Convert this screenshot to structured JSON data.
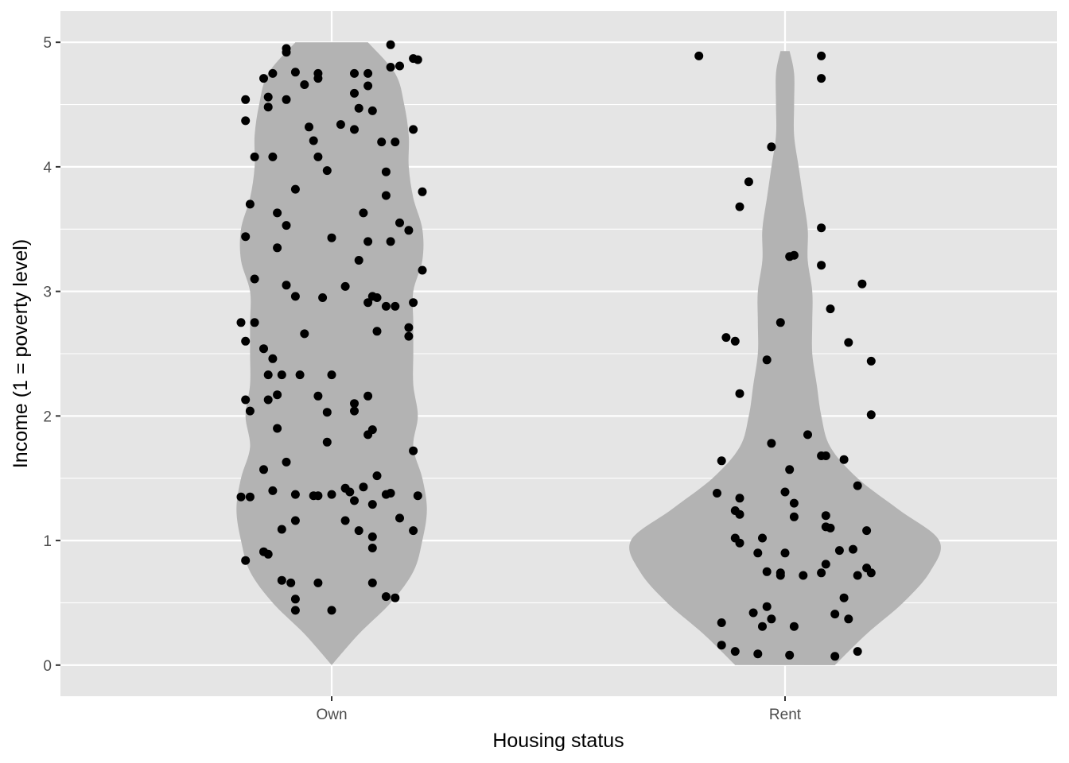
{
  "chart_data": {
    "type": "violin",
    "xlabel": "Housing status",
    "ylabel": "Income (1 = poverty level)",
    "ylim": [
      -0.25,
      5.25
    ],
    "yticks": [
      0,
      1,
      2,
      3,
      4,
      5
    ],
    "categories": [
      "Own",
      "Rent"
    ],
    "grid": true,
    "legend": "none",
    "colors": {
      "panel": "#e5e5e5",
      "grid": "#ffffff",
      "violin": "#b3b3b3",
      "point": "#000000",
      "tick": "#4d4d4d"
    },
    "violins": [
      {
        "category": "Own",
        "density_half_width": [
          [
            0.0,
            0.0
          ],
          [
            0.25,
            0.06
          ],
          [
            0.5,
            0.13
          ],
          [
            0.75,
            0.18
          ],
          [
            1.0,
            0.2
          ],
          [
            1.25,
            0.21
          ],
          [
            1.5,
            0.2
          ],
          [
            1.75,
            0.18
          ],
          [
            2.0,
            0.19
          ],
          [
            2.25,
            0.18
          ],
          [
            2.5,
            0.18
          ],
          [
            2.75,
            0.18
          ],
          [
            3.0,
            0.18
          ],
          [
            3.25,
            0.2
          ],
          [
            3.5,
            0.2
          ],
          [
            3.75,
            0.18
          ],
          [
            4.0,
            0.17
          ],
          [
            4.25,
            0.17
          ],
          [
            4.5,
            0.16
          ],
          [
            4.75,
            0.14
          ],
          [
            5.0,
            0.08
          ]
        ],
        "points": [
          [
            -0.19,
            4.54
          ],
          [
            -0.19,
            4.37
          ],
          [
            -0.17,
            4.08
          ],
          [
            -0.18,
            3.7
          ],
          [
            -0.19,
            3.44
          ],
          [
            -0.17,
            3.1
          ],
          [
            -0.2,
            2.75
          ],
          [
            -0.19,
            2.6
          ],
          [
            -0.17,
            2.75
          ],
          [
            -0.15,
            2.54
          ],
          [
            -0.13,
            2.46
          ],
          [
            -0.19,
            2.13
          ],
          [
            -0.18,
            2.04
          ],
          [
            -0.14,
            2.33
          ],
          [
            -0.14,
            2.13
          ],
          [
            -0.12,
            1.9
          ],
          [
            -0.12,
            2.17
          ],
          [
            -0.2,
            1.35
          ],
          [
            -0.18,
            1.35
          ],
          [
            -0.15,
            1.57
          ],
          [
            -0.13,
            1.4
          ],
          [
            -0.11,
            1.09
          ],
          [
            -0.15,
            0.91
          ],
          [
            -0.14,
            0.89
          ],
          [
            -0.19,
            0.84
          ],
          [
            -0.11,
            0.68
          ],
          [
            -0.09,
            0.66
          ],
          [
            -0.08,
            0.53
          ],
          [
            -0.08,
            0.44
          ],
          [
            -0.03,
            0.66
          ],
          [
            0.0,
            0.44
          ],
          [
            -0.15,
            4.71
          ],
          [
            -0.13,
            4.75
          ],
          [
            -0.1,
            4.92
          ],
          [
            -0.1,
            4.95
          ],
          [
            -0.08,
            4.76
          ],
          [
            -0.06,
            4.66
          ],
          [
            -0.03,
            4.71
          ],
          [
            -0.03,
            4.75
          ],
          [
            -0.14,
            4.56
          ],
          [
            -0.14,
            4.48
          ],
          [
            -0.1,
            4.54
          ],
          [
            -0.05,
            4.32
          ],
          [
            -0.04,
            4.21
          ],
          [
            -0.03,
            4.08
          ],
          [
            -0.01,
            3.97
          ],
          [
            -0.13,
            4.08
          ],
          [
            -0.08,
            3.82
          ],
          [
            -0.12,
            3.63
          ],
          [
            -0.1,
            3.53
          ],
          [
            -0.12,
            3.35
          ],
          [
            0.0,
            3.43
          ],
          [
            -0.1,
            3.05
          ],
          [
            -0.08,
            2.96
          ],
          [
            -0.06,
            2.66
          ],
          [
            -0.11,
            2.33
          ],
          [
            -0.07,
            2.33
          ],
          [
            -0.03,
            2.16
          ],
          [
            -0.01,
            2.03
          ],
          [
            0.0,
            2.33
          ],
          [
            -0.01,
            1.79
          ],
          [
            -0.1,
            1.63
          ],
          [
            -0.08,
            1.37
          ],
          [
            -0.04,
            1.36
          ],
          [
            -0.03,
            1.36
          ],
          [
            0.0,
            1.37
          ],
          [
            -0.08,
            1.16
          ],
          [
            -0.02,
            2.95
          ],
          [
            0.05,
            4.75
          ],
          [
            0.08,
            4.75
          ],
          [
            0.05,
            4.59
          ],
          [
            0.08,
            4.65
          ],
          [
            0.09,
            4.45
          ],
          [
            0.06,
            4.47
          ],
          [
            0.05,
            4.3
          ],
          [
            0.02,
            4.34
          ],
          [
            0.11,
            4.2
          ],
          [
            0.14,
            4.2
          ],
          [
            0.12,
            3.96
          ],
          [
            0.12,
            3.77
          ],
          [
            0.07,
            3.63
          ],
          [
            0.08,
            3.4
          ],
          [
            0.13,
            3.4
          ],
          [
            0.06,
            3.25
          ],
          [
            0.03,
            3.04
          ],
          [
            0.08,
            2.91
          ],
          [
            0.09,
            2.96
          ],
          [
            0.1,
            2.95
          ],
          [
            0.12,
            2.88
          ],
          [
            0.14,
            2.88
          ],
          [
            0.1,
            2.68
          ],
          [
            0.08,
            2.16
          ],
          [
            0.05,
            2.1
          ],
          [
            0.05,
            2.04
          ],
          [
            0.09,
            1.89
          ],
          [
            0.08,
            1.85
          ],
          [
            0.1,
            1.52
          ],
          [
            0.03,
            1.42
          ],
          [
            0.04,
            1.39
          ],
          [
            0.05,
            1.32
          ],
          [
            0.07,
            1.43
          ],
          [
            0.09,
            1.29
          ],
          [
            0.12,
            1.37
          ],
          [
            0.13,
            1.38
          ],
          [
            0.03,
            1.16
          ],
          [
            0.06,
            1.08
          ],
          [
            0.09,
            1.03
          ],
          [
            0.09,
            0.94
          ],
          [
            0.09,
            0.66
          ],
          [
            0.12,
            0.55
          ],
          [
            0.14,
            0.54
          ],
          [
            0.13,
            4.98
          ],
          [
            0.13,
            4.8
          ],
          [
            0.15,
            4.81
          ],
          [
            0.18,
            4.87
          ],
          [
            0.19,
            4.86
          ],
          [
            0.18,
            4.3
          ],
          [
            0.2,
            3.8
          ],
          [
            0.15,
            3.55
          ],
          [
            0.17,
            3.49
          ],
          [
            0.2,
            3.17
          ],
          [
            0.18,
            2.91
          ],
          [
            0.17,
            2.71
          ],
          [
            0.17,
            2.64
          ],
          [
            0.18,
            1.72
          ],
          [
            0.19,
            1.36
          ],
          [
            0.15,
            1.18
          ],
          [
            0.18,
            1.08
          ]
        ]
      },
      {
        "category": "Rent",
        "density_half_width": [
          [
            0.0,
            0.11
          ],
          [
            0.25,
            0.18
          ],
          [
            0.5,
            0.26
          ],
          [
            0.75,
            0.32
          ],
          [
            1.0,
            0.34
          ],
          [
            1.25,
            0.25
          ],
          [
            1.5,
            0.16
          ],
          [
            1.75,
            0.1
          ],
          [
            2.0,
            0.08
          ],
          [
            2.25,
            0.07
          ],
          [
            2.5,
            0.06
          ],
          [
            2.75,
            0.06
          ],
          [
            3.0,
            0.06
          ],
          [
            3.25,
            0.05
          ],
          [
            3.5,
            0.05
          ],
          [
            3.75,
            0.04
          ],
          [
            4.0,
            0.03
          ],
          [
            4.25,
            0.02
          ],
          [
            4.5,
            0.02
          ],
          [
            4.75,
            0.02
          ],
          [
            4.93,
            0.01
          ]
        ],
        "points": [
          [
            -0.19,
            4.89
          ],
          [
            0.08,
            4.89
          ],
          [
            0.08,
            4.71
          ],
          [
            -0.03,
            4.16
          ],
          [
            -0.08,
            3.88
          ],
          [
            -0.1,
            3.68
          ],
          [
            0.08,
            3.51
          ],
          [
            0.01,
            3.28
          ],
          [
            0.02,
            3.29
          ],
          [
            0.08,
            3.21
          ],
          [
            0.17,
            3.06
          ],
          [
            0.1,
            2.86
          ],
          [
            -0.01,
            2.75
          ],
          [
            -0.13,
            2.63
          ],
          [
            -0.11,
            2.6
          ],
          [
            0.14,
            2.59
          ],
          [
            -0.04,
            2.45
          ],
          [
            0.19,
            2.44
          ],
          [
            -0.1,
            2.18
          ],
          [
            0.19,
            2.01
          ],
          [
            -0.03,
            1.78
          ],
          [
            0.05,
            1.85
          ],
          [
            0.08,
            1.68
          ],
          [
            0.09,
            1.68
          ],
          [
            0.13,
            1.65
          ],
          [
            -0.14,
            1.64
          ],
          [
            0.01,
            1.57
          ],
          [
            0.16,
            1.44
          ],
          [
            -0.15,
            1.38
          ],
          [
            -0.1,
            1.34
          ],
          [
            0.0,
            1.39
          ],
          [
            0.02,
            1.3
          ],
          [
            -0.11,
            1.24
          ],
          [
            -0.1,
            1.21
          ],
          [
            0.02,
            1.19
          ],
          [
            0.09,
            1.2
          ],
          [
            0.09,
            1.11
          ],
          [
            0.1,
            1.1
          ],
          [
            0.18,
            1.08
          ],
          [
            -0.11,
            1.02
          ],
          [
            -0.1,
            0.98
          ],
          [
            -0.05,
            1.02
          ],
          [
            -0.06,
            0.9
          ],
          [
            0.0,
            0.9
          ],
          [
            0.12,
            0.92
          ],
          [
            0.15,
            0.93
          ],
          [
            -0.04,
            0.75
          ],
          [
            -0.01,
            0.74
          ],
          [
            -0.01,
            0.72
          ],
          [
            0.04,
            0.72
          ],
          [
            0.08,
            0.74
          ],
          [
            0.09,
            0.81
          ],
          [
            0.16,
            0.72
          ],
          [
            0.18,
            0.78
          ],
          [
            0.19,
            0.74
          ],
          [
            -0.04,
            0.47
          ],
          [
            -0.07,
            0.42
          ],
          [
            0.13,
            0.54
          ],
          [
            0.11,
            0.41
          ],
          [
            0.14,
            0.37
          ],
          [
            -0.14,
            0.34
          ],
          [
            -0.05,
            0.31
          ],
          [
            -0.03,
            0.37
          ],
          [
            0.02,
            0.31
          ],
          [
            -0.14,
            0.16
          ],
          [
            -0.11,
            0.11
          ],
          [
            -0.06,
            0.09
          ],
          [
            0.01,
            0.08
          ],
          [
            0.11,
            0.07
          ],
          [
            0.16,
            0.11
          ]
        ]
      }
    ]
  }
}
